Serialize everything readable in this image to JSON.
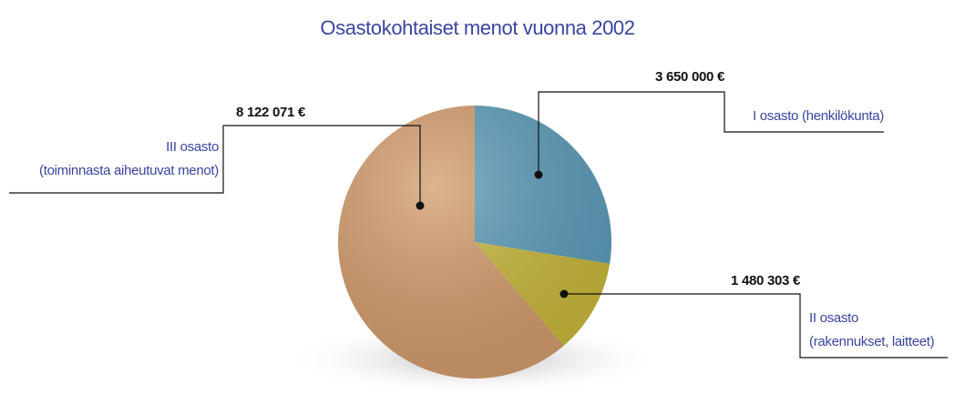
{
  "chart_data": {
    "type": "pie",
    "title": "Osastokohtaiset menot vuonna 2002",
    "categories": [
      "I osasto (henkilökunta)",
      "II osasto\n(rakennukset, laitteet)",
      "III osasto\n(toiminnasta aiheutuvat menot)"
    ],
    "values": [
      3650000,
      1480303,
      8122071
    ],
    "value_labels": [
      "3 650 000 €",
      "1 480 303 €",
      "8 122 071 €"
    ],
    "colors": [
      "#5c9cba",
      "#c9b93c",
      "#d39c6c"
    ]
  }
}
